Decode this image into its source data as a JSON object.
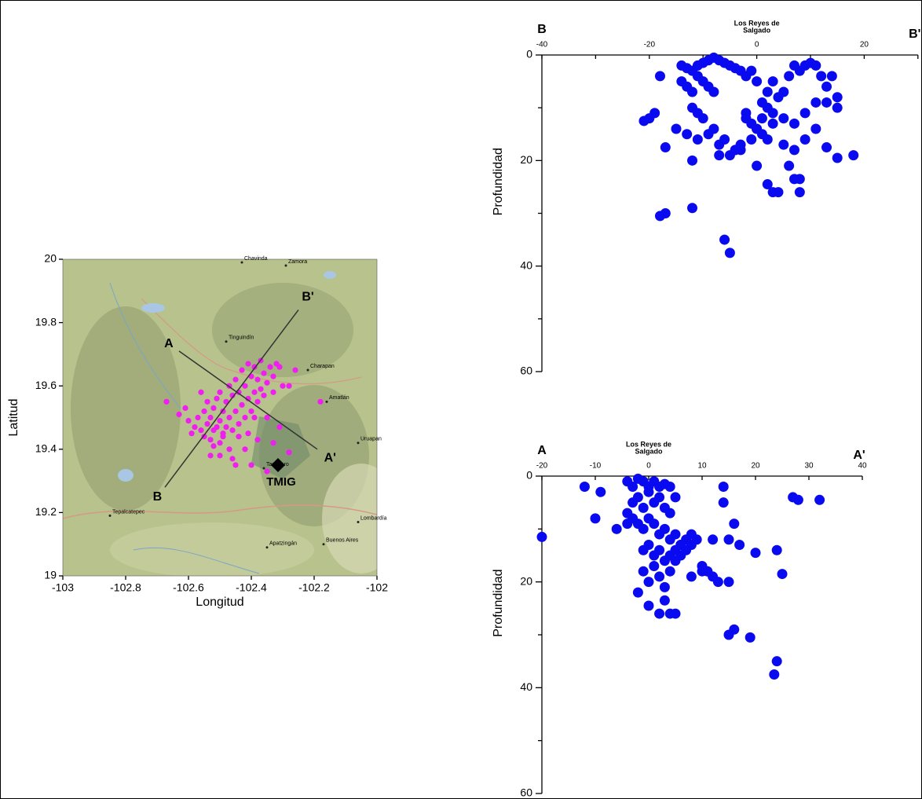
{
  "chart_data": [
    {
      "type": "map-scatter",
      "xlabel": "Longitud",
      "ylabel": "Latitud",
      "xlim": [
        -103,
        -102
      ],
      "ylim": [
        19,
        20
      ],
      "xticks": [
        -103,
        -102.8,
        -102.6,
        -102.4,
        -102.2,
        -102
      ],
      "yticks": [
        19,
        19.2,
        19.4,
        19.6,
        19.8,
        20
      ],
      "color": "#f01ef0",
      "x": [
        -102.67,
        -102.63,
        -102.61,
        -102.6,
        -102.59,
        -102.58,
        -102.57,
        -102.56,
        -102.56,
        -102.55,
        -102.55,
        -102.54,
        -102.54,
        -102.53,
        -102.53,
        -102.52,
        -102.52,
        -102.51,
        -102.51,
        -102.5,
        -102.5,
        -102.5,
        -102.49,
        -102.49,
        -102.48,
        -102.48,
        -102.47,
        -102.47,
        -102.46,
        -102.46,
        -102.45,
        -102.45,
        -102.44,
        -102.44,
        -102.43,
        -102.43,
        -102.42,
        -102.42,
        -102.41,
        -102.41,
        -102.4,
        -102.4,
        -102.39,
        -102.39,
        -102.38,
        -102.38,
        -102.37,
        -102.37,
        -102.36,
        -102.36,
        -102.35,
        -102.35,
        -102.34,
        -102.33,
        -102.33,
        -102.32,
        -102.31,
        -102.3,
        -102.28,
        -102.26,
        -102.28,
        -102.18,
        -102.35,
        -102.4,
        -102.45,
        -102.5,
        -102.38,
        -102.33,
        -102.31,
        -102.42,
        -102.47,
        -102.52,
        -102.44,
        -102.49,
        -102.41,
        -102.46,
        -102.53,
        -102.39
      ],
      "y": [
        19.55,
        19.51,
        19.53,
        19.49,
        19.45,
        19.47,
        19.5,
        19.58,
        19.46,
        19.44,
        19.52,
        19.48,
        19.55,
        19.43,
        19.5,
        19.46,
        19.53,
        19.47,
        19.56,
        19.42,
        19.49,
        19.58,
        19.45,
        19.52,
        19.47,
        19.55,
        19.5,
        19.6,
        19.46,
        19.57,
        19.52,
        19.62,
        19.48,
        19.58,
        19.54,
        19.65,
        19.5,
        19.6,
        19.56,
        19.67,
        19.52,
        19.63,
        19.58,
        19.66,
        19.55,
        19.62,
        19.59,
        19.68,
        19.57,
        19.64,
        19.61,
        19.5,
        19.66,
        19.63,
        19.58,
        19.67,
        19.66,
        19.6,
        19.6,
        19.65,
        19.39,
        19.55,
        19.33,
        19.35,
        19.35,
        19.38,
        19.43,
        19.42,
        19.47,
        19.4,
        19.4,
        19.41,
        19.44,
        19.44,
        19.45,
        19.37,
        19.38,
        19.5
      ],
      "profiles": [
        {
          "start_label": "A",
          "end_label": "A'",
          "start": [
            -102.63,
            19.71
          ],
          "end": [
            -102.19,
            19.4
          ]
        },
        {
          "start_label": "B",
          "end_label": "B'",
          "start": [
            -102.675,
            19.28
          ],
          "end": [
            -102.25,
            19.84
          ]
        }
      ],
      "station": {
        "name": "TMIG",
        "lon": -102.315,
        "lat": 19.35
      },
      "places": [
        {
          "name": "Chavinda",
          "lon": -102.43,
          "lat": 19.99
        },
        {
          "name": "Zamora",
          "lon": -102.29,
          "lat": 19.98
        },
        {
          "name": "Tinguindín",
          "lon": -102.48,
          "lat": 19.74
        },
        {
          "name": "Charapan",
          "lon": -102.22,
          "lat": 19.65
        },
        {
          "name": "Amatlán",
          "lon": -102.16,
          "lat": 19.55
        },
        {
          "name": "Uruapan",
          "lon": -102.06,
          "lat": 19.42
        },
        {
          "name": "Tancítaro",
          "lon": -102.36,
          "lat": 19.34
        },
        {
          "name": "Tepalcatepec",
          "lon": -102.85,
          "lat": 19.19
        },
        {
          "name": "Apatzingán",
          "lon": -102.35,
          "lat": 19.09
        },
        {
          "name": "Lombardía",
          "lon": -102.06,
          "lat": 19.17
        },
        {
          "name": "Buenos Aires",
          "lon": -102.17,
          "lat": 19.1
        }
      ]
    },
    {
      "type": "profile",
      "start_label": "B",
      "end_label": "B'",
      "ylabel": "Profundidad",
      "annotation": [
        "Los Reyes de",
        "Salgado"
      ],
      "annotation_x": 0,
      "xlim": [
        -40,
        30
      ],
      "xticks": [
        -40,
        -20,
        0,
        20
      ],
      "xminorticks": [
        -30,
        -10,
        10,
        30
      ],
      "ylim": [
        0,
        60
      ],
      "yticks": [
        0,
        20,
        40,
        60
      ],
      "yminorticks": [
        10,
        30,
        50
      ],
      "color": "#0a0af0",
      "x": [
        -18,
        -21,
        -20,
        -19,
        -17,
        -18,
        -17,
        -12,
        -6,
        -5,
        18,
        15,
        13,
        8,
        3,
        4,
        2,
        6,
        7,
        8,
        0,
        -14,
        -13,
        -12,
        -11,
        -10,
        -9,
        -8,
        -7,
        -6,
        -5,
        -4,
        -3,
        -14,
        -13,
        -12,
        -11,
        -10,
        -9,
        -8,
        -12,
        -11,
        -10,
        -8,
        -6,
        -4,
        -3,
        -2,
        -1,
        0,
        1,
        2,
        3,
        4,
        5,
        6,
        7,
        8,
        9,
        10,
        11,
        12,
        13,
        14,
        15,
        -2,
        -1,
        0,
        1,
        2,
        3,
        5,
        7,
        9,
        11,
        13,
        15,
        -15,
        -13,
        -11,
        -9,
        -7,
        -5,
        -3,
        -1,
        1,
        3,
        5,
        7,
        9,
        11,
        -12,
        -7,
        -4,
        -2,
        0,
        2
      ],
      "y": [
        4,
        12.5,
        12,
        11,
        17.5,
        30.5,
        30,
        29,
        35,
        37.5,
        19,
        19.5,
        17.5,
        26,
        26,
        26,
        24.5,
        21,
        23.5,
        23.5,
        21,
        2,
        2.5,
        3,
        2,
        1.5,
        1,
        0.5,
        1,
        1.5,
        2,
        2.5,
        3,
        5,
        6,
        7,
        4,
        5,
        6,
        7,
        10,
        11,
        12,
        14,
        16,
        18,
        17,
        4,
        3,
        5,
        9,
        7,
        5,
        8,
        7,
        4,
        2,
        3,
        2,
        1.5,
        2,
        4,
        6,
        4,
        8,
        12,
        13,
        14,
        12,
        10,
        11,
        12,
        13,
        11,
        9,
        9,
        10,
        14,
        15,
        16,
        15,
        17,
        19,
        18,
        16,
        15,
        13,
        17,
        18,
        16,
        14,
        20,
        19,
        18,
        11,
        14,
        16
      ]
    },
    {
      "type": "profile",
      "start_label": "A",
      "end_label": "A'",
      "ylabel": "Profundidad",
      "annotation": [
        "Los Reyes de",
        "Salgado"
      ],
      "annotation_x": 0,
      "xlim": [
        -20,
        40
      ],
      "xticks": [
        -20,
        -10,
        0,
        10,
        20,
        30,
        40
      ],
      "xminorticks": [],
      "ylim": [
        0,
        60
      ],
      "yticks": [
        0,
        20,
        40,
        60
      ],
      "yminorticks": [
        10,
        30,
        50
      ],
      "color": "#0a0af0",
      "x": [
        -20,
        -12,
        -9,
        -10,
        -6,
        -4,
        27,
        28,
        32,
        24,
        25,
        24,
        23.5,
        19,
        16,
        15,
        16,
        14,
        14,
        15,
        17,
        20,
        13,
        15,
        -4,
        -3,
        -2,
        -1,
        0,
        1,
        2,
        3,
        4,
        5,
        -3,
        -2,
        -1,
        0,
        1,
        2,
        3,
        4,
        -4,
        -3,
        -2,
        -1,
        0,
        1,
        2,
        3,
        4,
        5,
        6,
        -1,
        0,
        1,
        2,
        3,
        4,
        5,
        6,
        7,
        8,
        9,
        10,
        11,
        12,
        -1,
        0,
        1,
        2,
        3,
        4,
        5,
        6,
        7,
        8,
        -2,
        0,
        2,
        3,
        4,
        5,
        8,
        10,
        11,
        12
      ],
      "y": [
        11.5,
        2,
        3,
        8,
        10,
        9,
        4,
        4.5,
        4.5,
        14,
        18.5,
        35,
        37.5,
        30.5,
        29,
        30,
        9,
        5,
        2,
        12,
        13,
        14.5,
        20,
        20,
        1,
        2,
        0.5,
        1,
        2,
        1,
        2,
        1.5,
        2,
        4,
        5,
        4,
        6,
        3,
        5,
        4,
        6,
        7,
        7,
        8,
        9,
        10,
        8,
        9,
        11,
        10,
        12,
        11,
        13,
        14,
        13,
        15,
        14,
        16,
        15,
        14,
        13,
        12,
        11,
        12,
        17,
        18,
        19,
        18,
        20,
        17,
        19,
        21,
        18,
        16,
        15,
        14,
        13,
        22,
        24.5,
        26,
        23.5,
        26,
        26,
        19,
        18,
        18,
        12
      ]
    }
  ]
}
